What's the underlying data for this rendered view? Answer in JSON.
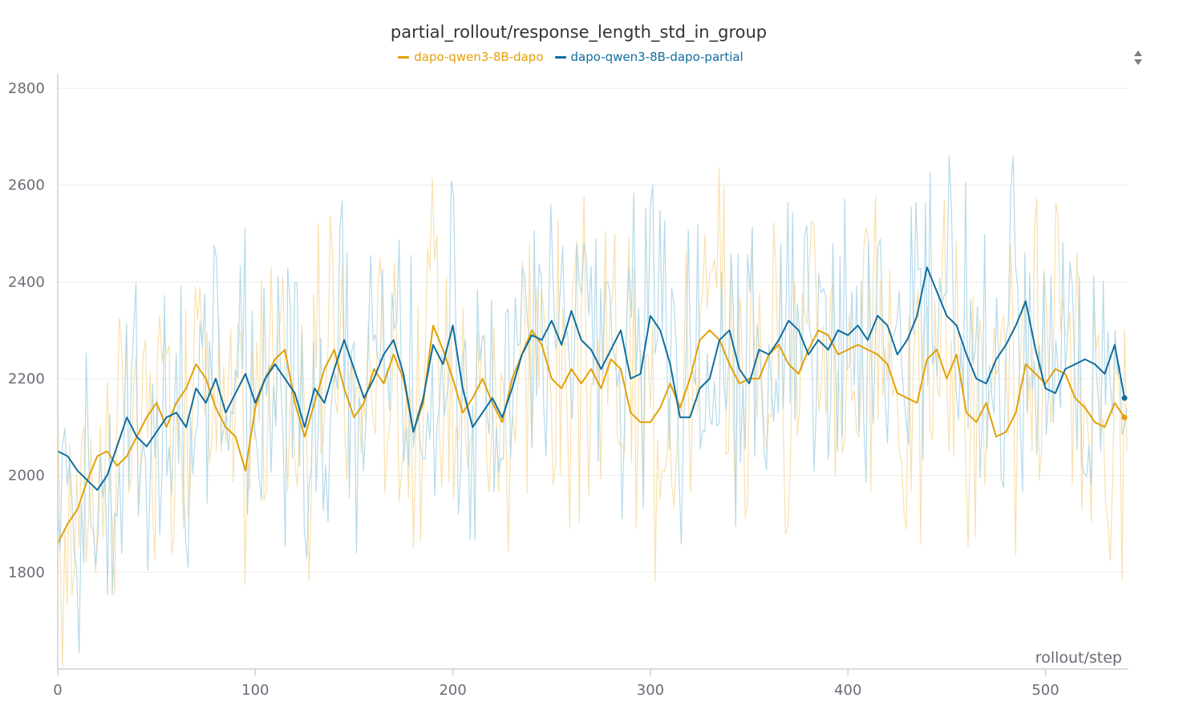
{
  "panel": {
    "title": "partial_rollout/response_length_std_in_group",
    "sort_icon": "sort-arrows-icon"
  },
  "legend": [
    {
      "name": "dapo-qwen3-8B-dapo",
      "color": "#e3a008"
    },
    {
      "name": "dapo-qwen3-8B-dapo-partial",
      "color": "#0f6e9e"
    }
  ],
  "colors": {
    "series_a_raw": "#f8dca0",
    "series_b_raw": "#a9d3e6",
    "grid": "#ececec",
    "axis": "#d0d0d0"
  },
  "chart_data": {
    "type": "line",
    "title": "partial_rollout/response_length_std_in_group",
    "xlabel": "rollout/step",
    "ylabel": "",
    "xlim": [
      0,
      542
    ],
    "ylim": [
      1600,
      2830
    ],
    "x_ticks": [
      0,
      100,
      200,
      300,
      400,
      500
    ],
    "y_ticks": [
      1800,
      2000,
      2200,
      2400,
      2600,
      2800
    ],
    "grid": true,
    "legend_position": "top-center",
    "smoothed": true,
    "series": [
      {
        "name": "dapo-qwen3-8B-dapo",
        "color": "#e3a008",
        "x": [
          0,
          5,
          10,
          15,
          20,
          25,
          30,
          35,
          40,
          45,
          50,
          55,
          60,
          65,
          70,
          75,
          80,
          85,
          90,
          95,
          100,
          105,
          110,
          115,
          120,
          125,
          130,
          135,
          140,
          145,
          150,
          155,
          160,
          165,
          170,
          175,
          180,
          185,
          190,
          195,
          200,
          205,
          210,
          215,
          220,
          225,
          230,
          235,
          240,
          245,
          250,
          255,
          260,
          265,
          270,
          275,
          280,
          285,
          290,
          295,
          300,
          305,
          310,
          315,
          320,
          325,
          330,
          335,
          340,
          345,
          350,
          355,
          360,
          365,
          370,
          375,
          380,
          385,
          390,
          395,
          400,
          405,
          410,
          415,
          420,
          425,
          430,
          435,
          440,
          445,
          450,
          455,
          460,
          465,
          470,
          475,
          480,
          485,
          490,
          495,
          500,
          505,
          510,
          515,
          520,
          525,
          530,
          535,
          540
        ],
        "values": [
          1860,
          1900,
          1930,
          1990,
          2040,
          2050,
          2020,
          2040,
          2080,
          2120,
          2150,
          2100,
          2150,
          2180,
          2230,
          2200,
          2140,
          2100,
          2080,
          2010,
          2140,
          2200,
          2240,
          2260,
          2150,
          2080,
          2150,
          2220,
          2260,
          2180,
          2120,
          2150,
          2220,
          2190,
          2250,
          2200,
          2090,
          2150,
          2310,
          2260,
          2200,
          2130,
          2160,
          2200,
          2150,
          2110,
          2200,
          2250,
          2300,
          2270,
          2200,
          2180,
          2220,
          2190,
          2220,
          2180,
          2240,
          2220,
          2130,
          2110,
          2110,
          2140,
          2190,
          2140,
          2200,
          2280,
          2300,
          2280,
          2230,
          2190,
          2200,
          2200,
          2250,
          2270,
          2230,
          2210,
          2260,
          2300,
          2290,
          2250,
          2260,
          2270,
          2260,
          2250,
          2230,
          2170,
          2160,
          2150,
          2240,
          2260,
          2200,
          2250,
          2130,
          2110,
          2150,
          2080,
          2090,
          2130,
          2230,
          2210,
          2190,
          2220,
          2210,
          2160,
          2140,
          2110,
          2100,
          2150,
          2120
        ]
      },
      {
        "name": "dapo-qwen3-8B-dapo-partial",
        "color": "#0f6e9e",
        "x": [
          0,
          5,
          10,
          15,
          20,
          25,
          30,
          35,
          40,
          45,
          50,
          55,
          60,
          65,
          70,
          75,
          80,
          85,
          90,
          95,
          100,
          105,
          110,
          115,
          120,
          125,
          130,
          135,
          140,
          145,
          150,
          155,
          160,
          165,
          170,
          175,
          180,
          185,
          190,
          195,
          200,
          205,
          210,
          215,
          220,
          225,
          230,
          235,
          240,
          245,
          250,
          255,
          260,
          265,
          270,
          275,
          280,
          285,
          290,
          295,
          300,
          305,
          310,
          315,
          320,
          325,
          330,
          335,
          340,
          345,
          350,
          355,
          360,
          365,
          370,
          375,
          380,
          385,
          390,
          395,
          400,
          405,
          410,
          415,
          420,
          425,
          430,
          435,
          440,
          445,
          450,
          455,
          460,
          465,
          470,
          475,
          480,
          485,
          490,
          495,
          500,
          505,
          510,
          515,
          520,
          525,
          530,
          535,
          540
        ],
        "values": [
          2050,
          2040,
          2010,
          1990,
          1970,
          2000,
          2060,
          2120,
          2080,
          2060,
          2090,
          2120,
          2130,
          2100,
          2180,
          2150,
          2200,
          2130,
          2170,
          2210,
          2150,
          2200,
          2230,
          2200,
          2170,
          2100,
          2180,
          2150,
          2220,
          2280,
          2220,
          2160,
          2200,
          2250,
          2280,
          2210,
          2090,
          2160,
          2270,
          2230,
          2310,
          2180,
          2100,
          2130,
          2160,
          2120,
          2180,
          2250,
          2290,
          2280,
          2320,
          2270,
          2340,
          2280,
          2260,
          2220,
          2260,
          2300,
          2200,
          2210,
          2330,
          2300,
          2230,
          2120,
          2120,
          2180,
          2200,
          2280,
          2300,
          2220,
          2190,
          2260,
          2250,
          2280,
          2320,
          2300,
          2250,
          2280,
          2260,
          2300,
          2290,
          2310,
          2280,
          2330,
          2310,
          2250,
          2280,
          2330,
          2430,
          2380,
          2330,
          2310,
          2250,
          2200,
          2190,
          2240,
          2270,
          2310,
          2360,
          2260,
          2180,
          2170,
          2220,
          2230,
          2240,
          2230,
          2210,
          2270,
          2160
        ]
      }
    ]
  }
}
